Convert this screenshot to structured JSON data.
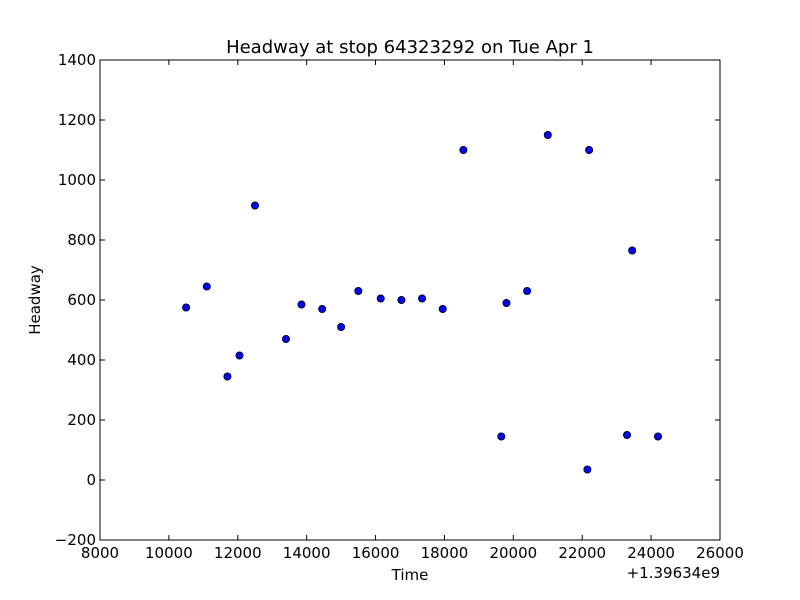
{
  "chart_data": {
    "type": "scatter",
    "title": "Headway at stop 64323292 on Tue Apr 1",
    "xlabel": "Time",
    "ylabel": "Headway",
    "x_offset_label": "+1.39634e9",
    "xlim": [
      8000,
      26000
    ],
    "ylim": [
      -200,
      1400
    ],
    "xticks": [
      8000,
      10000,
      12000,
      14000,
      16000,
      18000,
      20000,
      22000,
      24000,
      26000
    ],
    "yticks": [
      -200,
      0,
      200,
      400,
      600,
      800,
      1000,
      1200,
      1400
    ],
    "grid": false,
    "legend": "none",
    "marker_color": "#0000ff",
    "x": [
      10500,
      11100,
      11700,
      12050,
      12500,
      13400,
      13850,
      14450,
      15000,
      15500,
      16150,
      16750,
      17350,
      17950,
      18550,
      19650,
      19800,
      20400,
      21000,
      22150,
      22200,
      23300,
      23450,
      24200
    ],
    "y": [
      575,
      645,
      345,
      415,
      915,
      470,
      585,
      570,
      510,
      630,
      605,
      600,
      605,
      570,
      1100,
      145,
      590,
      630,
      1150,
      35,
      1100,
      150,
      765,
      145
    ]
  }
}
